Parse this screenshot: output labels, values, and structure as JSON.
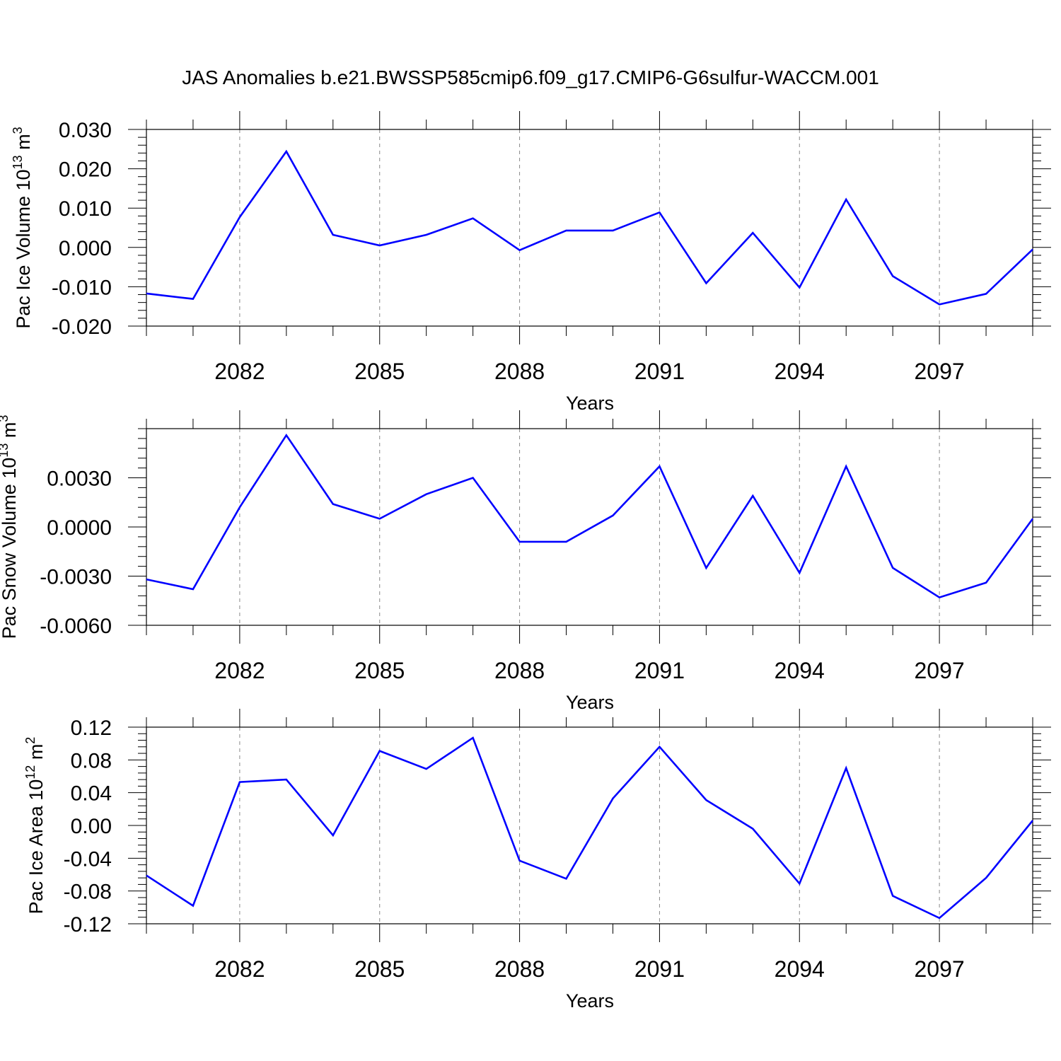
{
  "title": "JAS Anomalies b.e21.BWSSP585cmip6.f09_g17.CMIP6-G6sulfur-WACCM.001",
  "chart_data": [
    {
      "type": "line",
      "title": "",
      "xlabel": "Years",
      "ylabel": {
        "text": "Pac Ice Volume 10",
        "sup": "13",
        "unit": " m",
        "unit_sup": "3"
      },
      "xlim": [
        2080,
        2099
      ],
      "ylim": [
        -0.02,
        0.03
      ],
      "x_ticks": [
        2082,
        2085,
        2088,
        2091,
        2094,
        2097
      ],
      "y_ticks": [
        "0.030",
        "0.020",
        "0.010",
        "0.000",
        "-0.010",
        "-0.020"
      ],
      "y_tick_values": [
        0.03,
        0.02,
        0.01,
        0.0,
        -0.01,
        -0.02
      ],
      "grid": "vertical dashed",
      "line_color": "#0000ff",
      "x": [
        2080,
        2081,
        2082,
        2083,
        2084,
        2085,
        2086,
        2087,
        2088,
        2089,
        2090,
        2091,
        2092,
        2093,
        2094,
        2095,
        2096,
        2097,
        2098,
        2099
      ],
      "values": [
        -0.0117,
        -0.0131,
        0.0077,
        0.0244,
        0.0032,
        0.0005,
        0.0032,
        0.0074,
        -0.0007,
        0.0043,
        0.0043,
        0.0089,
        -0.0091,
        0.0037,
        -0.0102,
        0.0122,
        -0.0073,
        -0.0145,
        -0.0118,
        -0.0005
      ]
    },
    {
      "type": "line",
      "title": "",
      "xlabel": "Years",
      "ylabel": {
        "text": "Pac Snow Volume 10",
        "sup": "13",
        "unit": " m",
        "unit_sup": "3"
      },
      "xlim": [
        2080,
        2099
      ],
      "ylim": [
        -0.006,
        0.006
      ],
      "x_ticks": [
        2082,
        2085,
        2088,
        2091,
        2094,
        2097
      ],
      "y_ticks": [
        "0.0030",
        "0.0000",
        "-0.0030",
        "-0.0060"
      ],
      "y_tick_values": [
        0.003,
        0.0,
        -0.003,
        -0.006
      ],
      "grid": "vertical dashed",
      "line_color": "#0000ff",
      "x": [
        2080,
        2081,
        2082,
        2083,
        2084,
        2085,
        2086,
        2087,
        2088,
        2089,
        2090,
        2091,
        2092,
        2093,
        2094,
        2095,
        2096,
        2097,
        2098,
        2099
      ],
      "values": [
        -0.0032,
        -0.0038,
        0.0012,
        0.0056,
        0.0014,
        0.0005,
        0.002,
        0.003,
        -0.0009,
        -0.0009,
        0.0007,
        0.0037,
        -0.0025,
        0.0019,
        -0.0028,
        0.0037,
        -0.0025,
        -0.0043,
        -0.0034,
        0.0005
      ]
    },
    {
      "type": "line",
      "title": "",
      "xlabel": "Years",
      "ylabel": {
        "text": "Pac Ice Area 10",
        "sup": "12",
        "unit": " m",
        "unit_sup": "2"
      },
      "xlim": [
        2080,
        2099
      ],
      "ylim": [
        -0.12,
        0.12
      ],
      "x_ticks": [
        2082,
        2085,
        2088,
        2091,
        2094,
        2097
      ],
      "y_ticks": [
        "0.12",
        "0.08",
        "0.04",
        "0.00",
        "-0.04",
        "-0.08",
        "-0.12"
      ],
      "y_tick_values": [
        0.12,
        0.08,
        0.04,
        0.0,
        -0.04,
        -0.08,
        -0.12
      ],
      "grid": "vertical dashed",
      "line_color": "#0000ff",
      "x": [
        2080,
        2081,
        2082,
        2083,
        2084,
        2085,
        2086,
        2087,
        2088,
        2089,
        2090,
        2091,
        2092,
        2093,
        2094,
        2095,
        2096,
        2097,
        2098,
        2099
      ],
      "values": [
        -0.061,
        -0.098,
        0.053,
        0.056,
        -0.012,
        0.091,
        0.069,
        0.107,
        -0.043,
        -0.065,
        0.033,
        0.096,
        0.031,
        -0.004,
        -0.071,
        0.07,
        -0.086,
        -0.113,
        -0.064,
        0.006
      ]
    }
  ]
}
